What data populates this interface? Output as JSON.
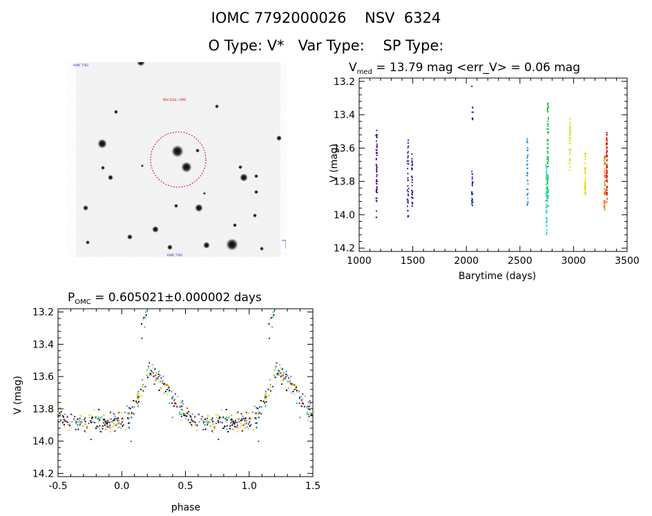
{
  "header": {
    "line1": "IOMC 7792000026    NSV  6324",
    "line2": "O Type: V*   Var Type:    SP Type:"
  },
  "finder_chart": {
    "label_top_left": "IOMC 7792",
    "label_center": "NSV 6324 / IOMC",
    "label_bottom": "IOMC 7792",
    "circle_color": "#dd0000"
  },
  "chart_data": [
    {
      "type": "scatter",
      "title_prefix": "V",
      "title_sub": "med",
      "title_rest": " = 13.79 mag <err_V> = 0.06 mag",
      "xlabel": "Barytime (days)",
      "ylabel": "V (mag)",
      "xlim": [
        1000,
        3500
      ],
      "ylim": [
        14.22,
        13.18
      ],
      "x_ticks": [
        1000,
        1500,
        2000,
        2500,
        3000,
        3500
      ],
      "y_ticks": [
        13.2,
        13.4,
        13.6,
        13.8,
        14.0,
        14.2
      ],
      "x_tick_labels": [
        "1000",
        "1500",
        "2000",
        "2500",
        "3000",
        "3500"
      ],
      "y_tick_labels": [
        "13.2",
        "13.4",
        "13.6",
        "13.8",
        "14.0",
        "14.2"
      ],
      "groups": [
        {
          "t": 1163,
          "ymin": 13.47,
          "ymax": 14.03,
          "n": 55,
          "color": "#4a148c"
        },
        {
          "t": 1455,
          "ymin": 13.54,
          "ymax": 14.02,
          "n": 35,
          "color": "#3b1a9a"
        },
        {
          "t": 1495,
          "ymin": 13.63,
          "ymax": 13.96,
          "n": 30,
          "color": "#2d1f9e"
        },
        {
          "t": 2055,
          "ymin": 13.74,
          "ymax": 13.97,
          "n": 25,
          "color": "#1f2aa8"
        },
        {
          "t": 2057,
          "ymin": 13.34,
          "ymax": 13.43,
          "n": 8,
          "color": "#1f2aa8"
        },
        {
          "t": 2052,
          "ymin": 13.23,
          "ymax": 13.24,
          "n": 1,
          "color": "#1f2aa8"
        },
        {
          "t": 2570,
          "ymin": 13.54,
          "ymax": 13.97,
          "n": 35,
          "color": "#1e90ff"
        },
        {
          "t": 2748,
          "ymin": 13.7,
          "ymax": 14.13,
          "n": 60,
          "color": "#38d8d8"
        },
        {
          "t": 2760,
          "ymin": 13.33,
          "ymax": 13.95,
          "n": 80,
          "color": "#22cc44"
        },
        {
          "t": 2966,
          "ymin": 13.42,
          "ymax": 13.75,
          "n": 30,
          "color": "#c8e020"
        },
        {
          "t": 3110,
          "ymin": 13.63,
          "ymax": 13.9,
          "n": 30,
          "color": "#f0d000"
        },
        {
          "t": 3290,
          "ymin": 13.65,
          "ymax": 13.97,
          "n": 45,
          "color": "#f08000"
        },
        {
          "t": 3310,
          "ymin": 13.5,
          "ymax": 13.93,
          "n": 70,
          "color": "#e02010"
        }
      ]
    },
    {
      "type": "scatter",
      "title_prefix": "P",
      "title_sub": "OMC",
      "title_rest": " = 0.605021±0.000002 days",
      "xlabel": "phase",
      "ylabel": "V (mag)",
      "xlim": [
        -0.5,
        1.5
      ],
      "ylim": [
        14.22,
        13.18
      ],
      "x_ticks": [
        -0.5,
        0.0,
        0.5,
        1.0,
        1.5
      ],
      "y_ticks": [
        13.2,
        13.4,
        13.6,
        13.8,
        14.0,
        14.2
      ],
      "x_tick_labels": [
        "-0.5",
        "0.0",
        "0.5",
        "1.0",
        "1.5"
      ],
      "y_tick_labels": [
        "13.2",
        "13.4",
        "13.6",
        "13.8",
        "14.0",
        "14.2"
      ],
      "period_days": 0.605021,
      "light_curve": {
        "minimum_mag": 13.88,
        "maximum_mag": 13.55,
        "rise_start_phase": 0.05,
        "peak_phase": 0.22
      },
      "colors": [
        "#4a148c",
        "#1f2aa8",
        "#1e90ff",
        "#38d8d8",
        "#22cc44",
        "#c8e020",
        "#f0d000",
        "#f08000",
        "#e02010",
        "#000000"
      ]
    }
  ]
}
